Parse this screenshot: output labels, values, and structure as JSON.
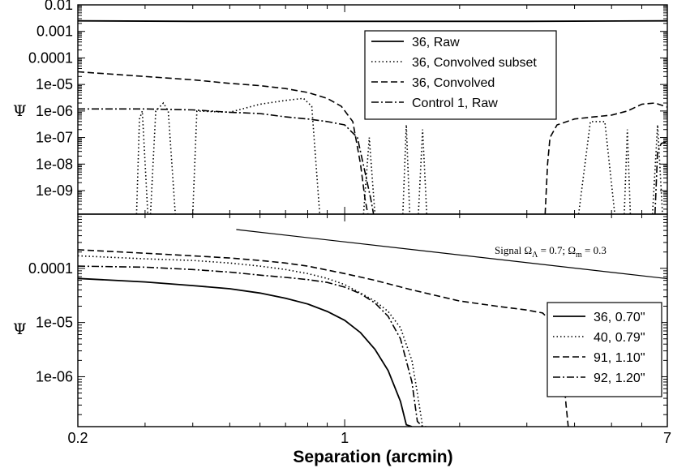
{
  "chart_data": [
    {
      "type": "line",
      "scale": {
        "x": "log",
        "y": "log"
      },
      "xlim": [
        0.2,
        7
      ],
      "ylim": [
        1.3e-10,
        0.01
      ],
      "ylabel": "Ψ",
      "y_tick_labels": [
        "0.01",
        "0.001",
        "0.0001",
        "1e-05",
        "1e-06",
        "1e-07",
        "1e-08",
        "1e-09"
      ],
      "y_ticks": [
        0.01,
        0.001,
        0.0001,
        1e-05,
        1e-06,
        1e-07,
        1e-08,
        1e-09
      ],
      "legend_position": "upper-right",
      "series": [
        {
          "name": "36, Raw",
          "style": "solid",
          "x": [
            0.2,
            0.4,
            1.0,
            3.0,
            7.0
          ],
          "y": [
            0.0025,
            0.0024,
            0.0024,
            0.0024,
            0.0025
          ]
        },
        {
          "name": "36, Convolved subset",
          "style": "dotted",
          "segments": [
            {
              "x": [
                0.285,
                0.29,
                0.295,
                0.305
              ],
              "y": [
                1.3e-10,
                5e-07,
                1e-06,
                1.3e-10
              ]
            },
            {
              "x": [
                0.31,
                0.32,
                0.335,
                0.345,
                0.36
              ],
              "y": [
                1.3e-10,
                1e-06,
                2e-06,
                1e-06,
                1.3e-10
              ]
            },
            {
              "x": [
                0.4,
                0.41,
                0.5,
                0.6,
                0.7,
                0.78,
                0.82,
                0.86
              ],
              "y": [
                1.3e-10,
                1e-06,
                9e-07,
                1.8e-06,
                2.5e-06,
                3e-06,
                1.5e-06,
                1.3e-10
              ]
            },
            {
              "x": [
                1.12,
                1.16,
                1.2
              ],
              "y": [
                1.3e-10,
                1e-07,
                1.3e-10
              ]
            },
            {
              "x": [
                1.42,
                1.45,
                1.48
              ],
              "y": [
                1.3e-10,
                3e-07,
                1.3e-10
              ]
            },
            {
              "x": [
                1.56,
                1.6,
                1.64
              ],
              "y": [
                1.3e-10,
                2e-07,
                1.3e-10
              ]
            },
            {
              "x": [
                4.1,
                4.4,
                4.8,
                5.1
              ],
              "y": [
                1.3e-10,
                4e-07,
                4e-07,
                1.3e-10
              ]
            },
            {
              "x": [
                5.4,
                5.5,
                5.6
              ],
              "y": [
                1.3e-10,
                2e-07,
                1.3e-10
              ]
            },
            {
              "x": [
                6.4,
                6.6,
                6.8
              ],
              "y": [
                1.3e-10,
                3e-07,
                1.3e-10
              ]
            }
          ]
        },
        {
          "name": "36, Convolved",
          "style": "dashed",
          "segments": [
            {
              "x": [
                0.2,
                0.3,
                0.4,
                0.5,
                0.6,
                0.7,
                0.8,
                0.9,
                0.98,
                1.05,
                1.1,
                1.13,
                1.15
              ],
              "y": [
                3e-05,
                2e-05,
                1.5e-05,
                1.1e-05,
                9e-06,
                7e-06,
                5e-06,
                3e-06,
                1.5e-06,
                4e-07,
                1e-08,
                5e-10,
                1.3e-10
              ]
            },
            {
              "x": [
                3.35,
                3.4,
                3.45,
                3.6,
                4.0,
                4.5,
                5.0,
                5.5,
                6.0,
                6.5,
                7.0
              ],
              "y": [
                1.3e-10,
                1e-08,
                1e-07,
                3e-07,
                5e-07,
                6e-07,
                7e-07,
                1e-06,
                1.8e-06,
                2e-06,
                1.4e-06
              ]
            }
          ]
        },
        {
          "name": "Control 1, Raw",
          "style": "dashdot",
          "segments": [
            {
              "x": [
                0.2,
                0.3,
                0.4,
                0.5,
                0.6,
                0.7,
                0.8,
                0.9,
                1.0,
                1.08,
                1.13,
                1.17,
                1.19
              ],
              "y": [
                1.2e-06,
                1.2e-06,
                1.1e-06,
                9e-07,
                8e-07,
                6e-07,
                5e-07,
                4e-07,
                3e-07,
                1e-07,
                5e-09,
                5e-10,
                1.3e-10
              ]
            },
            {
              "x": [
                6.5,
                6.6,
                6.75,
                7.0
              ],
              "y": [
                1.3e-10,
                3e-08,
                6e-08,
                7e-08
              ]
            }
          ]
        }
      ]
    },
    {
      "type": "line",
      "scale": {
        "x": "log",
        "y": "log"
      },
      "xlim": [
        0.2,
        7
      ],
      "ylim": [
        1.2e-07,
        0.001
      ],
      "xlabel": "Separation (arcmin)",
      "ylabel": "Ψ",
      "x_tick_labels": [
        "0.2",
        "1",
        "7"
      ],
      "x_ticks": [
        0.2,
        1,
        7
      ],
      "y_tick_labels": [
        "0.0001",
        "1e-05",
        "1e-06"
      ],
      "y_ticks": [
        0.0001,
        1e-05,
        1e-06
      ],
      "legend_position": "lower-right",
      "annotation": {
        "text_main": "Signal Ω",
        "sub1": "Λ",
        "mid": " = 0.7; Ω",
        "sub2": "m",
        "end": " = 0.3",
        "line_x": [
          0.52,
          7.0
        ],
        "line_y": [
          0.00052,
          6.45e-05
        ]
      },
      "series": [
        {
          "name": "36, 0.70\"",
          "style": "solid",
          "x": [
            0.2,
            0.3,
            0.4,
            0.5,
            0.6,
            0.7,
            0.8,
            0.9,
            1.0,
            1.1,
            1.2,
            1.3,
            1.4,
            1.45,
            1.5
          ],
          "y": [
            6.5e-05,
            5.6e-05,
            4.8e-05,
            4.2e-05,
            3.5e-05,
            2.8e-05,
            2.2e-05,
            1.6e-05,
            1.1e-05,
            6.5e-06,
            3.2e-06,
            1.3e-06,
            3.5e-07,
            1.3e-07,
            1.2e-07
          ]
        },
        {
          "name": "40, 0.79\"",
          "style": "dotted",
          "x": [
            0.2,
            0.3,
            0.4,
            0.5,
            0.6,
            0.7,
            0.8,
            0.9,
            1.0,
            1.1,
            1.2,
            1.3,
            1.4,
            1.5,
            1.55,
            1.6,
            1.65
          ],
          "y": [
            0.00017,
            0.00015,
            0.00014,
            0.000125,
            0.00011,
            9.5e-05,
            8e-05,
            6.5e-05,
            5e-05,
            3.5e-05,
            2.5e-05,
            1.6e-05,
            8e-06,
            2e-06,
            5e-07,
            1.2e-07,
            1.2e-07
          ]
        },
        {
          "name": "91, 1.10\"",
          "style": "dashed",
          "x": [
            0.2,
            0.3,
            0.4,
            0.5,
            0.6,
            0.7,
            0.8,
            1.0,
            1.2,
            1.5,
            2.0,
            2.5,
            3.0,
            3.3,
            3.5,
            3.7,
            3.8,
            3.85
          ],
          "y": [
            0.00022,
            0.00019,
            0.00017,
            0.000155,
            0.00014,
            0.000125,
            0.00011,
            8e-05,
            6e-05,
            4e-05,
            2.5e-05,
            2e-05,
            1.7e-05,
            1.5e-05,
            1e-05,
            3e-06,
            3e-07,
            1.2e-07
          ]
        },
        {
          "name": "92, 1.20\"",
          "style": "dashdot",
          "x": [
            0.2,
            0.3,
            0.4,
            0.5,
            0.6,
            0.7,
            0.8,
            0.9,
            1.0,
            1.1,
            1.2,
            1.3,
            1.4,
            1.5,
            1.55,
            1.6
          ],
          "y": [
            0.00011,
            0.000105,
            9.5e-05,
            8.5e-05,
            7.5e-05,
            6.8e-05,
            6.2e-05,
            5.5e-05,
            4.5e-05,
            3.4e-05,
            2.3e-05,
            1.3e-05,
            5e-06,
            8e-07,
            1.5e-07,
            1.2e-07
          ]
        }
      ]
    }
  ]
}
